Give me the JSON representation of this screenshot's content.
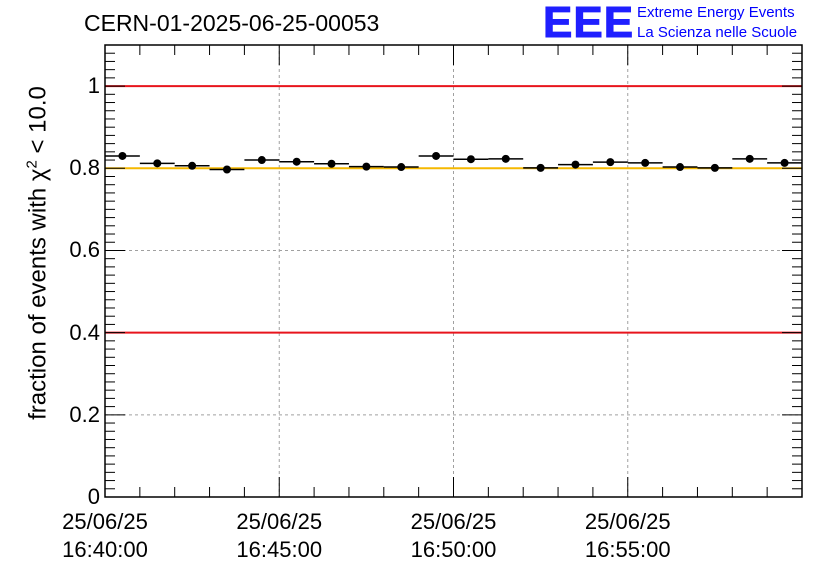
{
  "run_title": "CERN-01-2025-06-25-00053",
  "logo": {
    "mark": "EEE",
    "line1": "Extreme Energy Events",
    "line2": "La Scienza nelle Scuole"
  },
  "colors": {
    "reference_red": "#e8141c",
    "reference_yellow": "#f5b800",
    "logo_blue": "#1f1fff",
    "grid": "#a0a0a0"
  },
  "chart_data": {
    "type": "scatter",
    "title": "CERN-01-2025-06-25-00053",
    "xlabel": "",
    "ylabel_parts": {
      "prefix": "fraction of events with ",
      "symbol": "χ",
      "power": "2",
      "suffix": " < 10.0"
    },
    "xlim_minutes": [
      0,
      20
    ],
    "ylim": [
      0,
      1.1
    ],
    "y_ticks": [
      "0",
      "0.2",
      "0.4",
      "0.6",
      "0.8",
      "1"
    ],
    "y_tick_values": [
      0,
      0.2,
      0.4,
      0.6,
      0.8,
      1.0
    ],
    "x_ticks": [
      {
        "date": "25/06/25",
        "time": "16:40:00",
        "minute": 0
      },
      {
        "date": "25/06/25",
        "time": "16:45:00",
        "minute": 5
      },
      {
        "date": "25/06/25",
        "time": "16:50:00",
        "minute": 10
      },
      {
        "date": "25/06/25",
        "time": "16:55:00",
        "minute": 15
      }
    ],
    "reference_lines": [
      {
        "y": 1.0,
        "color": "red"
      },
      {
        "y": 0.8,
        "color": "yellow"
      },
      {
        "y": 0.4,
        "color": "red"
      }
    ],
    "bin_width_minutes": 1,
    "series": [
      {
        "name": "fraction",
        "x_minutes": [
          0.5,
          1.5,
          2.5,
          3.5,
          4.5,
          5.5,
          6.5,
          7.5,
          8.5,
          9.5,
          10.5,
          11.5,
          12.5,
          13.5,
          14.5,
          15.5,
          16.5,
          17.5,
          18.5,
          19.5
        ],
        "values": [
          0.83,
          0.812,
          0.806,
          0.797,
          0.82,
          0.816,
          0.811,
          0.804,
          0.803,
          0.83,
          0.822,
          0.823,
          0.801,
          0.809,
          0.815,
          0.813,
          0.803,
          0.801,
          0.823,
          0.813
        ]
      }
    ]
  }
}
